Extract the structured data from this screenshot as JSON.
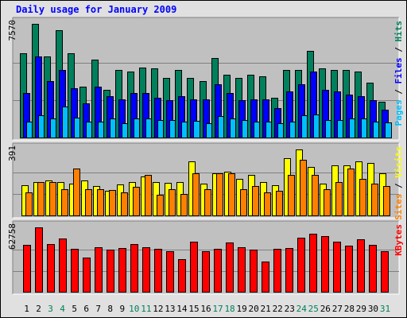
{
  "chart_data": {
    "title": "Daily usage for January 2009",
    "type": "bar",
    "categories": [
      "1",
      "2",
      "3",
      "4",
      "5",
      "6",
      "7",
      "8",
      "9",
      "10",
      "11",
      "12",
      "13",
      "14",
      "15",
      "16",
      "17",
      "18",
      "19",
      "20",
      "21",
      "22",
      "23",
      "24",
      "25",
      "26",
      "27",
      "28",
      "29",
      "30",
      "31"
    ],
    "weekend_days": [
      "3",
      "4",
      "10",
      "11",
      "17",
      "18",
      "24",
      "25",
      "31"
    ],
    "weekday_label_color": "#000000",
    "weekend_label_color": "#00805c",
    "panels": [
      {
        "id": "hits",
        "ylabel": "7570",
        "ymax": 7570,
        "series": [
          {
            "name": "Hits",
            "color": "#00805c",
            "values": [
              5600,
              7550,
              5400,
              7150,
              5650,
              3400,
              5200,
              3200,
              4500,
              4400,
              4700,
              4600,
              4000,
              4500,
              4000,
              3800,
              5300,
              4200,
              4000,
              4200,
              4100,
              2700,
              4500,
              4500,
              5800,
              4600,
              4500,
              4500,
              4400,
              3700,
              2400
            ]
          },
          {
            "name": "Files",
            "color": "#0000ff",
            "values": [
              3000,
              5400,
              3800,
              4500,
              3300,
              2300,
              3400,
              2800,
              2600,
              3000,
              3000,
              2700,
              2500,
              2800,
              2600,
              2600,
              3600,
              3000,
              2500,
              2600,
              2600,
              2000,
              3100,
              3600,
              4400,
              3200,
              3100,
              2900,
              2800,
              2500,
              1900
            ]
          },
          {
            "name": "Pages",
            "color": "#00bfff",
            "values": [
              1100,
              1500,
              1300,
              2100,
              1350,
              1100,
              1100,
              1300,
              1000,
              1300,
              1300,
              1200,
              1200,
              1100,
              1150,
              1000,
              1450,
              1300,
              1200,
              1100,
              1100,
              1000,
              1100,
              1500,
              1600,
              1200,
              1200,
              1300,
              1300,
              1100,
              1050
            ]
          }
        ],
        "legend": [
          "Pages",
          "Files",
          "Hits"
        ]
      },
      {
        "id": "visits",
        "ylabel": "391",
        "ymax": 391,
        "series": [
          {
            "name": "Visits",
            "color": "#ffff00",
            "values": [
              180,
              200,
              210,
              200,
              190,
              210,
              175,
              150,
              185,
              200,
              235,
              200,
              195,
              200,
              320,
              190,
              250,
              260,
              220,
              240,
              200,
              180,
              340,
              390,
              290,
              190,
              300,
              300,
              320,
              310,
              250
            ]
          },
          {
            "name": "Sites",
            "color": "#ff8000",
            "values": [
              140,
              200,
              200,
              160,
              280,
              160,
              160,
              155,
              140,
              170,
              240,
              125,
              160,
              130,
              250,
              160,
              250,
              250,
              160,
              175,
              140,
              150,
              240,
              330,
              240,
              160,
              200,
              280,
              220,
              190,
              175
            ]
          }
        ],
        "legend": [
          "Sites",
          "Visits"
        ]
      },
      {
        "id": "kbytes",
        "ylabel": "62758",
        "ymax": 62758,
        "series": [
          {
            "name": "KBytes",
            "color": "#ff0000",
            "values": [
              46000,
              62758,
              47000,
              52000,
              42000,
              34000,
              44000,
              41000,
              43000,
              47000,
              44000,
              42000,
              40000,
              32000,
              49000,
              40000,
              42000,
              48000,
              44000,
              41000,
              30000,
              42000,
              43000,
              53000,
              57000,
              54000,
              49000,
              45000,
              51000,
              46000,
              40000
            ]
          }
        ],
        "legend": [
          "KBytes"
        ]
      }
    ]
  }
}
